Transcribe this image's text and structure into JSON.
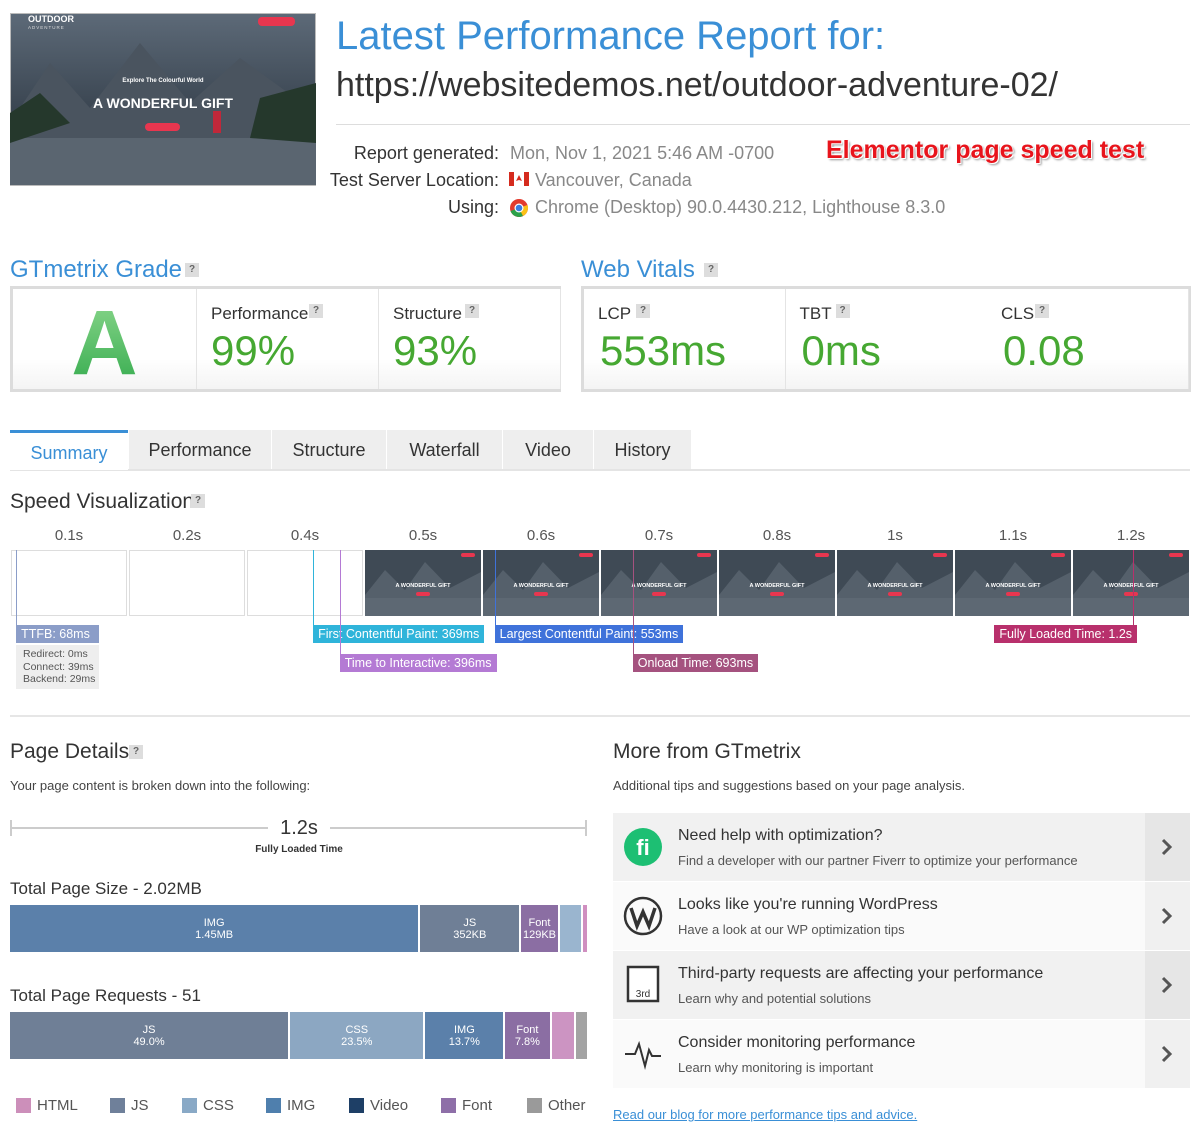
{
  "thumbnail": {
    "brand": "OUTDOOR",
    "tagline": "ADVENTURE",
    "kicker": "Explore The Colourful World",
    "heading": "A WONDERFUL GIFT"
  },
  "header": {
    "title": "Latest Performance Report for:",
    "url": "https://websitedemos.net/outdoor-adventure-02/",
    "annotation": "Elementor page speed test",
    "fields": [
      {
        "label": "Report generated:",
        "value": "Mon, Nov 1, 2021 5:46 AM -0700"
      },
      {
        "label": "Test Server Location:",
        "value": "Vancouver, Canada"
      },
      {
        "label": "Using:",
        "value": "Chrome (Desktop) 90.0.4430.212, Lighthouse 8.3.0"
      }
    ]
  },
  "help": "?",
  "grade": {
    "title": "GTmetrix Grade",
    "letter": "A",
    "metrics": [
      {
        "label": "Performance",
        "value": "99%"
      },
      {
        "label": "Structure",
        "value": "93%"
      }
    ]
  },
  "vitals": {
    "title": "Web Vitals",
    "metrics": [
      {
        "label": "LCP",
        "value": "553ms"
      },
      {
        "label": "TBT",
        "value": "0ms"
      },
      {
        "label": "CLS",
        "value": "0.08"
      }
    ]
  },
  "tabs": [
    "Summary",
    "Performance",
    "Structure",
    "Waterfall",
    "Video",
    "History"
  ],
  "speed": {
    "title": "Speed Visualization",
    "frames": [
      "0.1s",
      "0.2s",
      "0.4s",
      "0.5s",
      "0.6s",
      "0.7s",
      "0.8s",
      "1s",
      "1.1s",
      "1.2s"
    ],
    "markers": [
      {
        "label": "TTFB: 68ms",
        "value": 68,
        "color": "#8b9dc8"
      },
      {
        "label": "First Contentful Paint: 369ms",
        "value": 369,
        "color": "#2fb4da"
      },
      {
        "label": "Time to Interactive: 396ms",
        "value": 396,
        "color": "#b47ad4"
      },
      {
        "label": "Largest Contentful Paint: 553ms",
        "value": 553,
        "color": "#3f72da"
      },
      {
        "label": "Onload Time: 693ms",
        "value": 693,
        "color": "#a5527f"
      },
      {
        "label": "Fully Loaded Time: 1.2s",
        "value": 1200,
        "color": "#b8306c"
      }
    ],
    "ttfb_details": [
      "Redirect: 0ms",
      "Connect: 39ms",
      "Backend: 29ms"
    ]
  },
  "page_details": {
    "title": "Page Details",
    "subtitle": "Your page content is broken down into the following:",
    "fully_loaded": {
      "value": "1.2s",
      "label": "Fully Loaded Time"
    },
    "size": {
      "title": "Total Page Size - 2.02MB",
      "segments": [
        {
          "label": "IMG",
          "value": 1450,
          "value_label": "1.45MB",
          "color": "#5b80aa"
        },
        {
          "label": "JS",
          "value": 352,
          "value_label": "352KB",
          "color": "#6f7f96"
        },
        {
          "label": "Font",
          "value": 129,
          "value_label": "129KB",
          "color": "#8b6ea3"
        },
        {
          "label": null,
          "value": 75,
          "color": "#9ab5cf"
        },
        {
          "label": null,
          "value": 15,
          "color": "#d08fc0"
        }
      ]
    },
    "requests": {
      "title": "Total Page Requests - 51",
      "segments": [
        {
          "label": "JS",
          "value": 49.0,
          "value_label": "49.0%",
          "color": "#6f7f96"
        },
        {
          "label": "CSS",
          "value": 23.5,
          "value_label": "23.5%",
          "color": "#8ca7c2"
        },
        {
          "label": "IMG",
          "value": 13.7,
          "value_label": "13.7%",
          "color": "#5b80aa"
        },
        {
          "label": "Font",
          "value": 7.8,
          "value_label": "7.8%",
          "color": "#8b6ea3"
        },
        {
          "label": null,
          "value": 3.9,
          "color": "#cc94c2"
        },
        {
          "label": null,
          "value": 2.0,
          "color": "#a3a3a3"
        }
      ]
    },
    "legend": [
      {
        "name": "HTML",
        "color": "#cc8fba"
      },
      {
        "name": "JS",
        "color": "#6f809a"
      },
      {
        "name": "CSS",
        "color": "#89a9c6"
      },
      {
        "name": "IMG",
        "color": "#4f7fad"
      },
      {
        "name": "Video",
        "color": "#1e3f66"
      },
      {
        "name": "Font",
        "color": "#8e6fa8"
      },
      {
        "name": "Other",
        "color": "#9a9a9a"
      }
    ]
  },
  "more": {
    "title": "More from GTmetrix",
    "subtitle": "Additional tips and suggestions based on your page analysis.",
    "items": [
      {
        "icon": "fi",
        "title": "Need help with optimization?",
        "text": "Find a developer with our partner Fiverr to optimize your performance"
      },
      {
        "title": "Looks like you're running WordPress",
        "text": "Have a look at our WP optimization tips"
      },
      {
        "icon": "3rd",
        "title": "Third-party requests are affecting your performance",
        "text": "Learn why and potential solutions"
      },
      {
        "title": "Consider monitoring performance",
        "text": "Learn why monitoring is important"
      }
    ],
    "link": "Read our blog for more performance tips and advice."
  }
}
